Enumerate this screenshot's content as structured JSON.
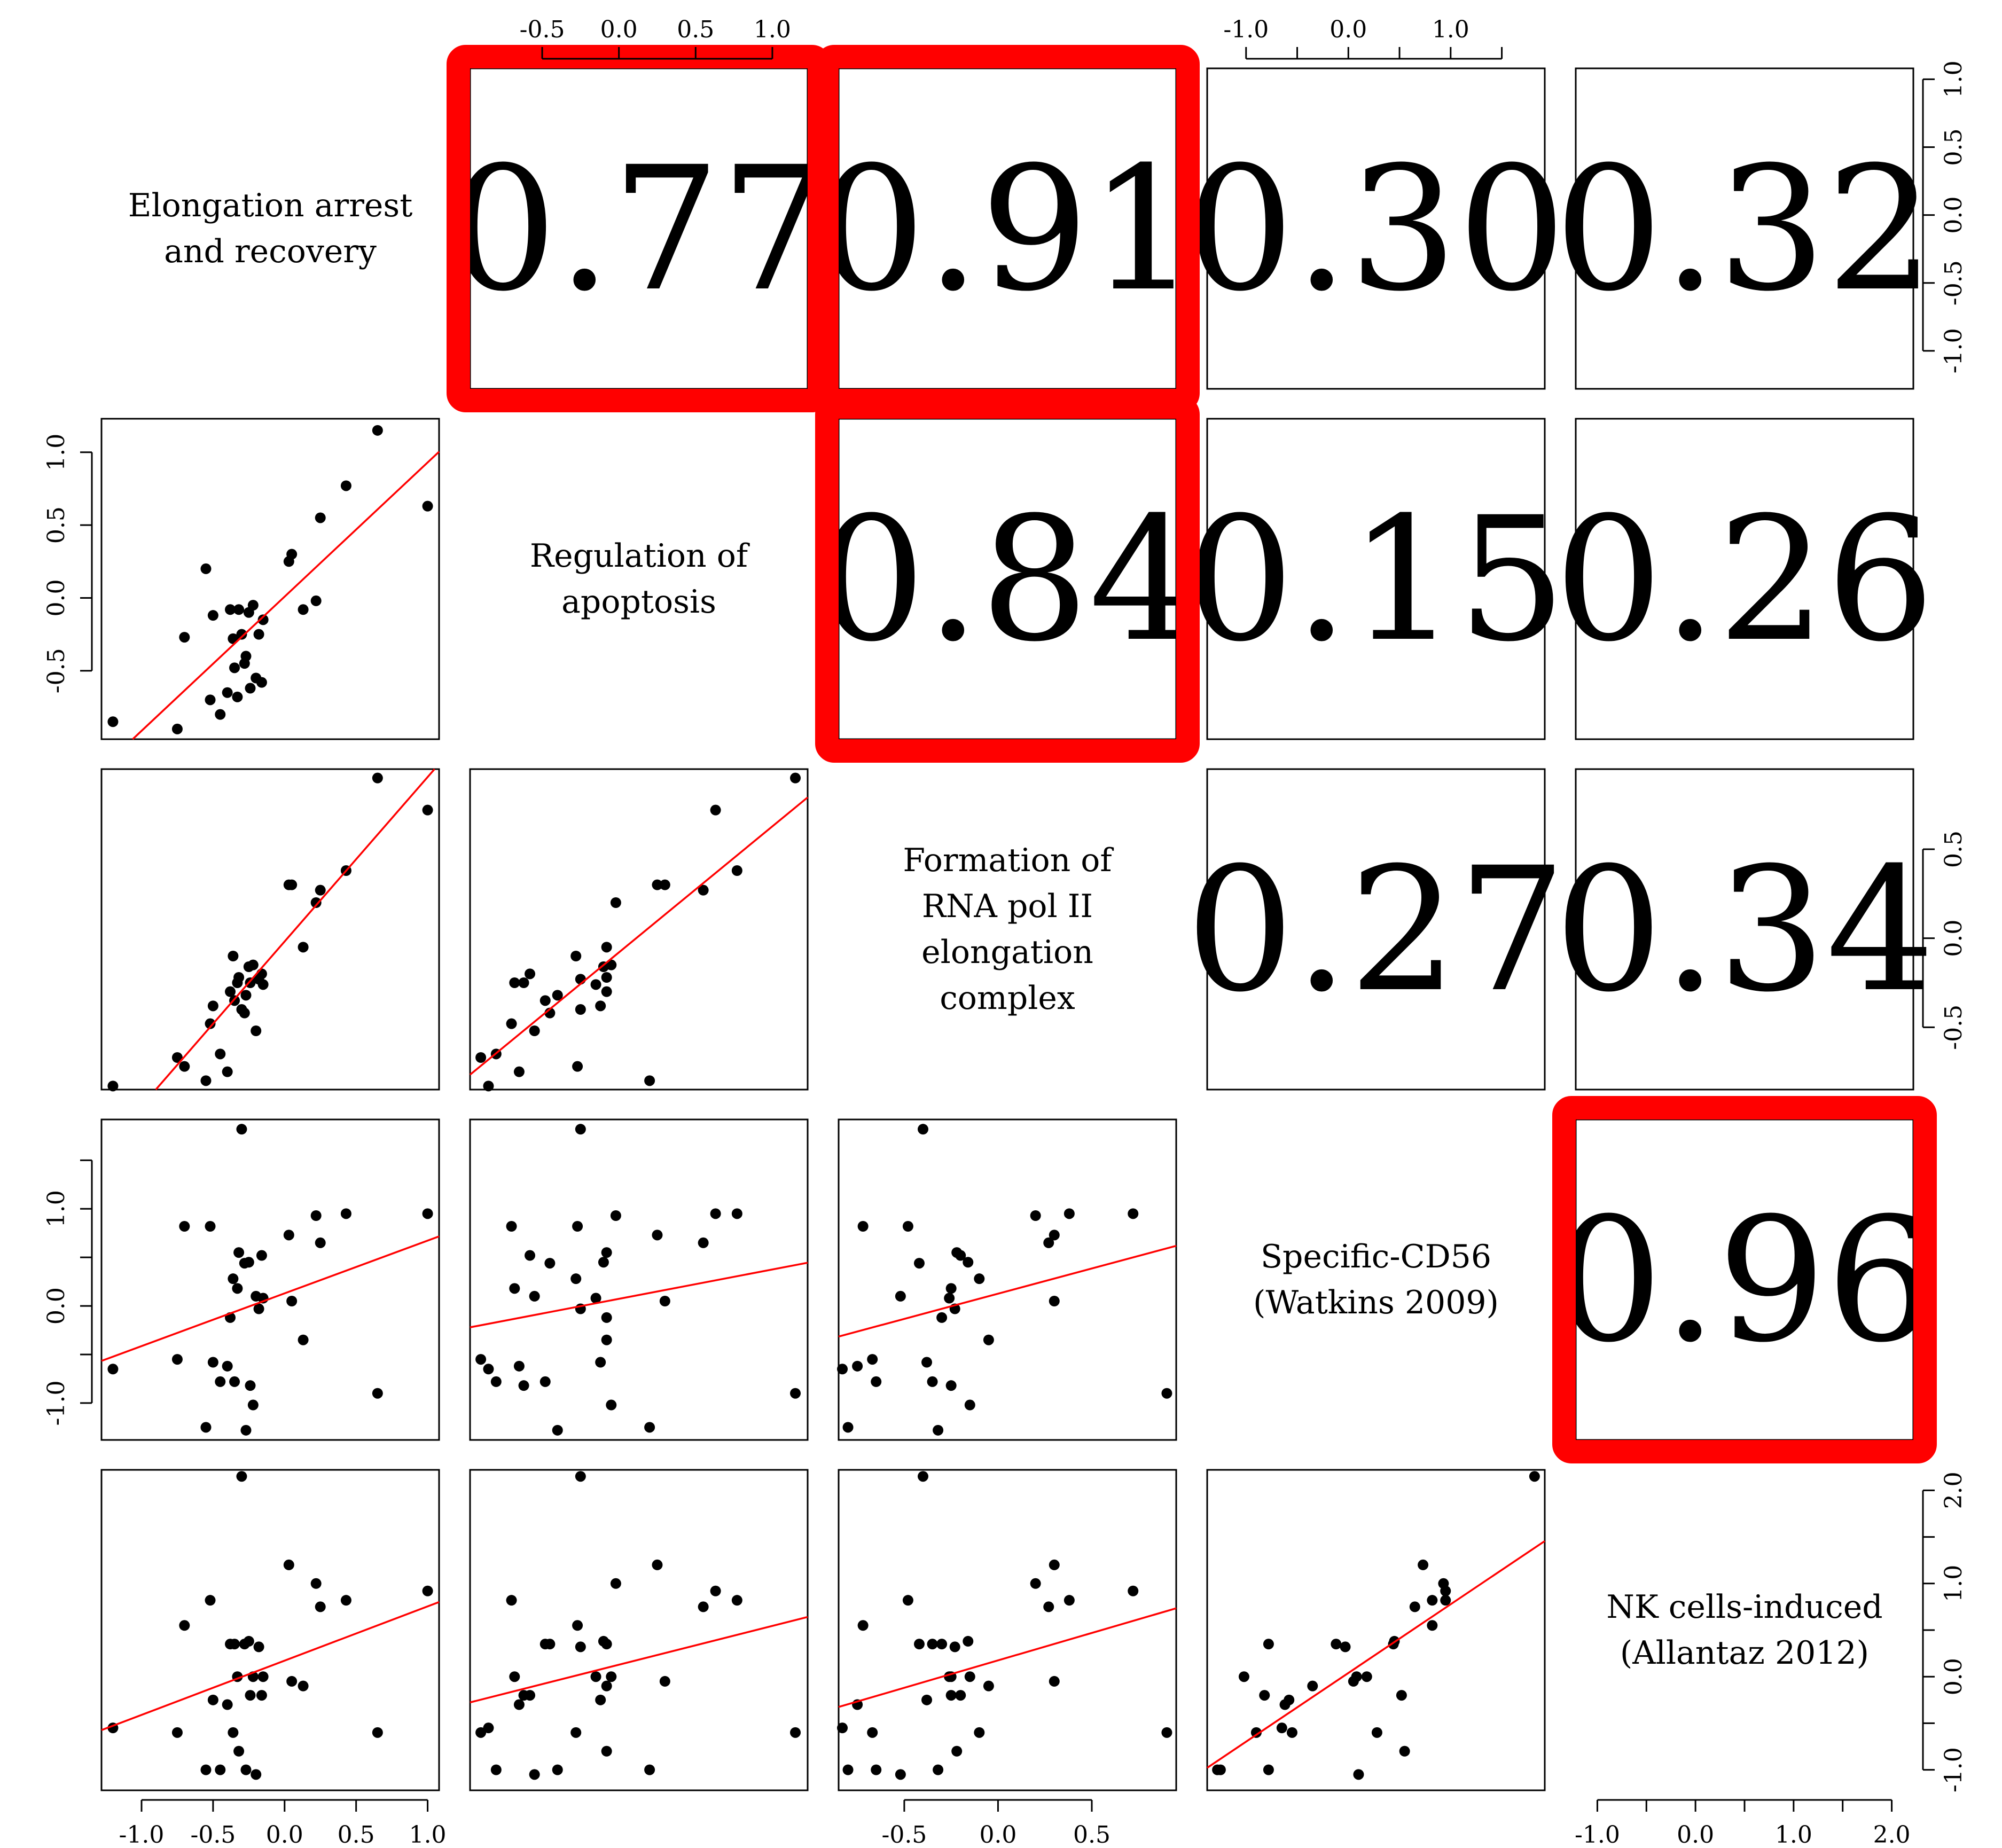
{
  "chart_data": {
    "type": "scatter-matrix",
    "variables": [
      [
        "Elongation arrest",
        "and recovery"
      ],
      [
        "Regulation of",
        "apoptosis"
      ],
      [
        "Formation of",
        "RNA pol II",
        "elongation",
        "complex"
      ],
      [
        "Specific-CD56",
        "(Watkins 2009)"
      ],
      [
        "NK cells-induced",
        "(Allantaz 2012)"
      ]
    ],
    "axis_ranges": [
      [
        -1.28,
        1.08
      ],
      [
        -0.97,
        1.23
      ],
      [
        -0.85,
        0.95
      ],
      [
        -1.38,
        1.92
      ],
      [
        -1.22,
        2.22
      ]
    ],
    "tick_values": [
      [
        -1.0,
        -0.5,
        0.0,
        0.5,
        1.0
      ],
      [
        -0.5,
        0.0,
        0.5,
        1.0
      ],
      [
        -0.5,
        0.0,
        0.5
      ],
      [
        -1.0,
        -0.5,
        0.0,
        0.5,
        1.0,
        1.5
      ],
      [
        -1.0,
        -0.5,
        0.0,
        0.5,
        1.0,
        1.5,
        2.0
      ]
    ],
    "tick_labels": [
      [
        "-1.0",
        "-0.5",
        "0.0",
        "0.5",
        "1.0"
      ],
      [
        "-0.5",
        "0.0",
        "0.5",
        "1.0"
      ],
      [
        "-0.5",
        "0.0",
        "0.5"
      ],
      [
        "-1.0",
        "",
        "0.0",
        "",
        "1.0",
        ""
      ],
      [
        "-1.0",
        "",
        "0.0",
        "",
        "1.0",
        "",
        "2.0"
      ]
    ],
    "correlations": [
      {
        "row": 0,
        "col": 1,
        "label": "0.77",
        "highlight": true
      },
      {
        "row": 0,
        "col": 2,
        "label": "0.91",
        "highlight": true
      },
      {
        "row": 0,
        "col": 3,
        "label": "0.30",
        "highlight": false
      },
      {
        "row": 0,
        "col": 4,
        "label": "0.32",
        "highlight": false
      },
      {
        "row": 1,
        "col": 2,
        "label": "0.84",
        "highlight": true
      },
      {
        "row": 1,
        "col": 3,
        "label": "0.15",
        "highlight": false
      },
      {
        "row": 1,
        "col": 4,
        "label": "0.26",
        "highlight": false
      },
      {
        "row": 2,
        "col": 3,
        "label": "0.27",
        "highlight": false
      },
      {
        "row": 2,
        "col": 4,
        "label": "0.34",
        "highlight": false
      },
      {
        "row": 3,
        "col": 4,
        "label": "0.96",
        "highlight": true
      }
    ],
    "points": [
      {
        "v1": -1.2,
        "v2": -0.85,
        "v3": -0.83,
        "v4": -0.65,
        "v5": -0.55
      },
      {
        "v1": -0.75,
        "v2": -0.9,
        "v3": -0.67,
        "v4": -0.55,
        "v5": -0.6
      },
      {
        "v1": -0.7,
        "v2": -0.27,
        "v3": -0.72,
        "v4": 0.82,
        "v5": 0.55
      },
      {
        "v1": -0.55,
        "v2": 0.2,
        "v3": -0.8,
        "v4": -1.25,
        "v5": -1.0
      },
      {
        "v1": -0.52,
        "v2": -0.7,
        "v3": -0.48,
        "v4": 0.82,
        "v5": 0.82
      },
      {
        "v1": -0.5,
        "v2": -0.12,
        "v3": -0.38,
        "v4": -0.58,
        "v5": -0.25
      },
      {
        "v1": -0.45,
        "v2": -0.8,
        "v3": -0.65,
        "v4": -0.78,
        "v5": -1.0
      },
      {
        "v1": -0.4,
        "v2": -0.65,
        "v3": -0.75,
        "v4": -0.62,
        "v5": -0.3
      },
      {
        "v1": -0.38,
        "v2": -0.08,
        "v3": -0.3,
        "v4": -0.12,
        "v5": 0.35
      },
      {
        "v1": -0.36,
        "v2": -0.28,
        "v3": -0.1,
        "v4": 0.28,
        "v5": -0.6
      },
      {
        "v1": -0.35,
        "v2": -0.48,
        "v3": -0.35,
        "v4": -0.78,
        "v5": 0.35
      },
      {
        "v1": -0.33,
        "v2": -0.68,
        "v3": -0.25,
        "v4": 0.18,
        "v5": 0.0
      },
      {
        "v1": -0.32,
        "v2": -0.08,
        "v3": -0.22,
        "v4": 0.55,
        "v5": -0.8
      },
      {
        "v1": -0.3,
        "v2": -0.25,
        "v3": -0.4,
        "v4": 1.82,
        "v5": 2.15
      },
      {
        "v1": -0.28,
        "v2": -0.45,
        "v3": -0.42,
        "v4": 0.44,
        "v5": 0.35
      },
      {
        "v1": -0.27,
        "v2": -0.4,
        "v3": -0.32,
        "v4": -1.28,
        "v5": -1.0
      },
      {
        "v1": -0.25,
        "v2": -0.1,
        "v3": -0.16,
        "v4": 0.45,
        "v5": 0.38
      },
      {
        "v1": -0.24,
        "v2": -0.62,
        "v3": -0.25,
        "v4": -0.82,
        "v5": -0.2
      },
      {
        "v1": -0.22,
        "v2": -0.05,
        "v3": -0.15,
        "v4": -1.02,
        "v5": 0.0
      },
      {
        "v1": -0.2,
        "v2": -0.55,
        "v3": -0.52,
        "v4": 0.1,
        "v5": -1.05
      },
      {
        "v1": -0.18,
        "v2": -0.25,
        "v3": -0.23,
        "v4": -0.03,
        "v5": 0.32
      },
      {
        "v1": -0.16,
        "v2": -0.58,
        "v3": -0.2,
        "v4": 0.52,
        "v5": -0.2
      },
      {
        "v1": -0.15,
        "v2": -0.15,
        "v3": -0.26,
        "v4": 0.08,
        "v5": 0.0
      },
      {
        "v1": 0.03,
        "v2": 0.25,
        "v3": 0.3,
        "v4": 0.73,
        "v5": 1.2
      },
      {
        "v1": 0.05,
        "v2": 0.3,
        "v3": 0.3,
        "v4": 0.05,
        "v5": -0.05
      },
      {
        "v1": 0.13,
        "v2": -0.08,
        "v3": -0.05,
        "v4": -0.35,
        "v5": -0.1
      },
      {
        "v1": 0.22,
        "v2": -0.02,
        "v3": 0.2,
        "v4": 0.93,
        "v5": 1.0
      },
      {
        "v1": 0.25,
        "v2": 0.55,
        "v3": 0.27,
        "v4": 0.65,
        "v5": 0.75
      },
      {
        "v1": 0.43,
        "v2": 0.77,
        "v3": 0.38,
        "v4": 0.95,
        "v5": 0.82
      },
      {
        "v1": 0.65,
        "v2": 1.15,
        "v3": 0.9,
        "v4": -0.9,
        "v5": -0.6
      },
      {
        "v1": 1.0,
        "v2": 0.63,
        "v3": 0.72,
        "v4": 0.95,
        "v5": 0.92
      }
    ]
  }
}
